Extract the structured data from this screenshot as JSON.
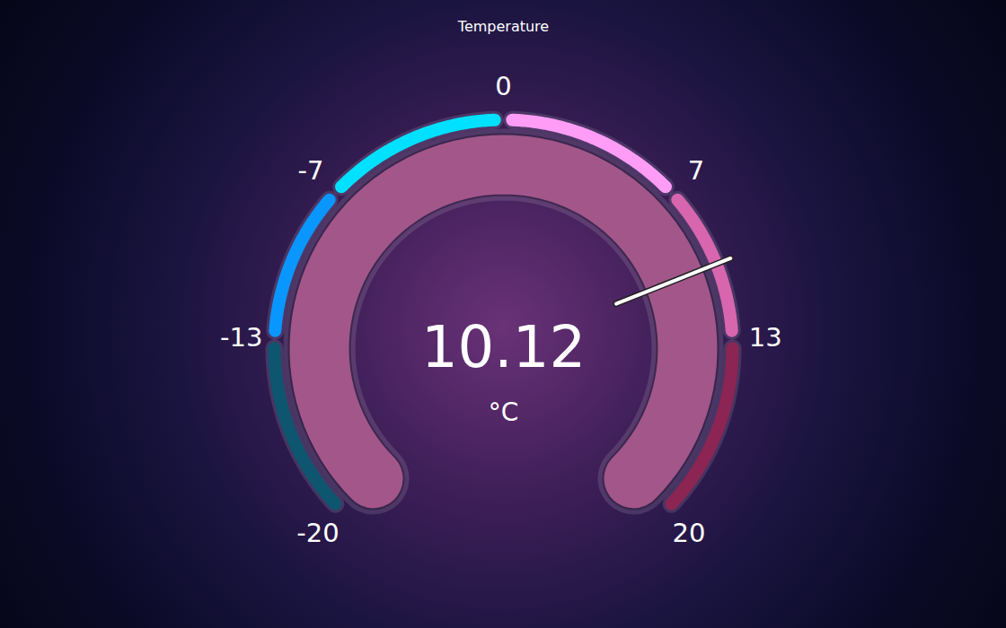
{
  "chart_data": {
    "type": "gauge",
    "title": "Temperature",
    "value": 10.12,
    "unit": "°C",
    "ylim": [
      -20,
      20
    ],
    "yticks": [
      -20,
      -13,
      -7,
      0,
      7,
      13,
      20
    ],
    "bands": [
      [
        -20,
        -13
      ],
      [
        -13,
        -7
      ],
      [
        -7,
        0
      ],
      [
        0,
        7
      ],
      [
        7,
        13
      ],
      [
        13,
        20
      ]
    ],
    "colors": [
      "#0e5670",
      "#0a96ff",
      "#00e1ff",
      "#ff9cf6",
      "#d766ae",
      "#8c2553"
    ]
  }
}
